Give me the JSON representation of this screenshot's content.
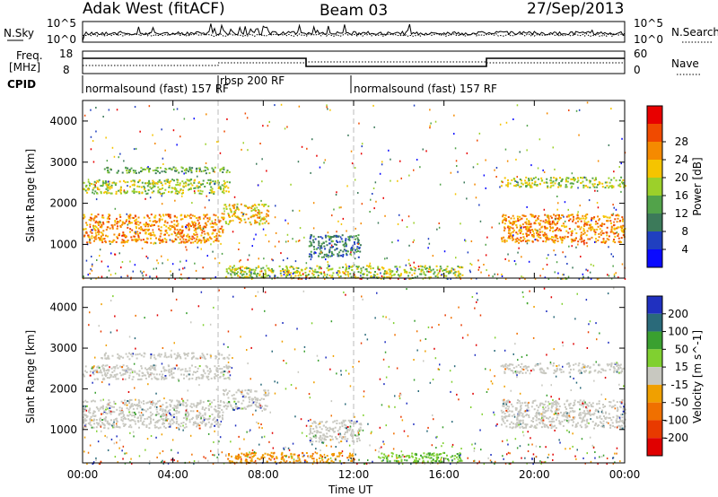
{
  "header": {
    "site": "Adak West (fitACF)",
    "beam": "Beam 03",
    "date": "27/Sep/2013"
  },
  "strip_labels": {
    "nsky": "N.Sky",
    "nsky_top": "10^5",
    "nsky_bot": "10^0",
    "nsearch": "N.Search",
    "nsearch_top": "10^5",
    "nsearch_bot": "10^0",
    "freq_line1": "Freq.",
    "freq_line2": "[MHz]",
    "freq_top": "18",
    "freq_bot": "8",
    "nave": "Nave",
    "nave_top": "60",
    "nave_bot": "0",
    "cpid": "CPID"
  },
  "cpid_segments": [
    {
      "start_hour": 0,
      "end_hour": 6.0,
      "name": "normalsound (fast) 157 RF"
    },
    {
      "start_hour": 6.0,
      "end_hour": 12.0,
      "name": "rbsp 200 RF"
    },
    {
      "start_hour": 12.0,
      "end_hour": 24.0,
      "name": "normalsound (fast) 157 RF"
    }
  ],
  "colors": {
    "power": [
      "#0a0aff",
      "#2040c0",
      "#3c7a5a",
      "#52a34a",
      "#9cd02a",
      "#f5c400",
      "#f58a00",
      "#f04a00",
      "#e80000"
    ],
    "velocity": [
      "#2030c0",
      "#2a6a7a",
      "#3aa030",
      "#80d030",
      "#c8c8c0",
      "#f0a000",
      "#f07000",
      "#e83a00",
      "#e00000"
    ]
  },
  "chart_data": [
    {
      "type": "heatmap",
      "name": "power",
      "ylabel": "Slant Range [km]",
      "xlabel": "Time UT",
      "xlim": [
        0,
        24
      ],
      "ylim": [
        180,
        4500
      ],
      "xticks": [
        "00:00",
        "04:00",
        "08:00",
        "12:00",
        "16:00",
        "20:00",
        "00:00"
      ],
      "yticks": [
        1000,
        2000,
        3000,
        4000
      ],
      "colorbar": {
        "label": "Power [dB]",
        "ticks": [
          4,
          8,
          12,
          16,
          20,
          24,
          28
        ],
        "range": [
          0,
          32
        ]
      },
      "echo_regions": [
        {
          "t": [
            0.0,
            6.2
          ],
          "r": [
            1050,
            1750
          ],
          "level": "28"
        },
        {
          "t": [
            0.0,
            6.5
          ],
          "r": [
            2250,
            2600
          ],
          "level": "20"
        },
        {
          "t": [
            0.8,
            6.5
          ],
          "r": [
            2750,
            2900
          ],
          "level": "16"
        },
        {
          "t": [
            6.2,
            8.2
          ],
          "r": [
            1500,
            2000
          ],
          "level": "24"
        },
        {
          "t": [
            10.0,
            12.3
          ],
          "r": [
            700,
            1250
          ],
          "level": "12"
        },
        {
          "t": [
            6.3,
            16.8
          ],
          "r": [
            200,
            500
          ],
          "level": "20"
        },
        {
          "t": [
            18.5,
            24.0
          ],
          "r": [
            1050,
            1750
          ],
          "level": "28"
        },
        {
          "t": [
            18.5,
            24.0
          ],
          "r": [
            2400,
            2650
          ],
          "level": "20"
        }
      ]
    },
    {
      "type": "heatmap",
      "name": "velocity",
      "ylabel": "Slant Range [km]",
      "xlabel": "Time UT",
      "xlim": [
        0,
        24
      ],
      "ylim": [
        180,
        4500
      ],
      "xticks": [
        "00:00",
        "04:00",
        "08:00",
        "12:00",
        "16:00",
        "20:00",
        "00:00"
      ],
      "yticks": [
        1000,
        2000,
        3000,
        4000
      ],
      "colorbar": {
        "label": "Velocity [m s^-1]",
        "ticks": [
          200,
          100,
          50,
          15,
          -15,
          -50,
          -100,
          -200
        ]
      },
      "echo_regions": [
        {
          "t": [
            0.0,
            6.2
          ],
          "r": [
            1050,
            1750
          ],
          "level": "0"
        },
        {
          "t": [
            0.0,
            6.5
          ],
          "r": [
            2250,
            2600
          ],
          "level": "0"
        },
        {
          "t": [
            0.8,
            6.5
          ],
          "r": [
            2750,
            2900
          ],
          "level": "0"
        },
        {
          "t": [
            6.2,
            8.2
          ],
          "r": [
            1500,
            2000
          ],
          "level": "0"
        },
        {
          "t": [
            10.0,
            12.3
          ],
          "r": [
            700,
            1250
          ],
          "level": "0"
        },
        {
          "t": [
            6.3,
            12.0
          ],
          "r": [
            200,
            450
          ],
          "level": "-50"
        },
        {
          "t": [
            13.0,
            16.8
          ],
          "r": [
            200,
            450
          ],
          "level": "30"
        },
        {
          "t": [
            18.5,
            24.0
          ],
          "r": [
            1050,
            1750
          ],
          "level": "0"
        },
        {
          "t": [
            18.5,
            24.0
          ],
          "r": [
            2400,
            2650
          ],
          "level": "0"
        }
      ]
    }
  ]
}
